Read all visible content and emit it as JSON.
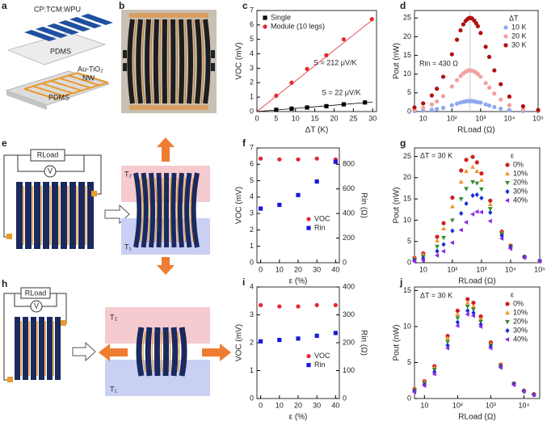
{
  "figures": [
    {
      "label": "a",
      "texts": [
        "CP:TCM:WPU",
        "PDMS",
        "Au-TiO₂",
        "NW",
        "PDMS"
      ]
    },
    {
      "label": "b"
    },
    {
      "label": "e",
      "texts": [
        "RLoad",
        "V",
        "T₂",
        "T₁"
      ]
    },
    {
      "label": "h",
      "texts": [
        "RLoad",
        "V",
        "T₂",
        "T₁"
      ]
    }
  ],
  "chart_data": [
    {
      "type": "scatter",
      "label": "c",
      "xlabel": "ΔT (K)",
      "ylabel": "VOC (mV)",
      "xlim": [
        0,
        31
      ],
      "xticks": [
        0,
        5,
        10,
        15,
        20,
        25,
        30
      ],
      "ylim": [
        0,
        7
      ],
      "yticks": [
        0,
        1,
        2,
        3,
        4,
        5,
        6,
        7
      ],
      "legend": "upper left",
      "series": [
        {
          "name": "Single",
          "color": "#000000",
          "marker": "square",
          "x": [
            5,
            9,
            13,
            18,
            22.5,
            28
          ],
          "values": [
            0.12,
            0.2,
            0.28,
            0.37,
            0.5,
            0.63
          ]
        },
        {
          "name": "Module (10 legs)",
          "color": "#e3262d",
          "marker": "circle",
          "x": [
            5,
            9,
            13,
            18,
            22.5,
            29.8
          ],
          "values": [
            1.1,
            2.0,
            2.95,
            3.9,
            5.0,
            6.4
          ]
        }
      ],
      "fits": [
        {
          "color": "#e3262d",
          "x": [
            0,
            30
          ],
          "values": [
            0,
            6.36
          ]
        },
        {
          "color": "#000000",
          "x": [
            0,
            30
          ],
          "values": [
            0,
            0.66
          ]
        }
      ],
      "annotations": [
        {
          "text": "S = 212 μV/K",
          "color": "#e3262d"
        },
        {
          "text": "S = 22 μV/K",
          "color": "#000000"
        }
      ]
    },
    {
      "type": "scatter",
      "label": "d",
      "xlabel": "RLoad (Ω)",
      "ylabel": "Pout (nW)",
      "xscale": "log",
      "xlim": [
        5,
        100000
      ],
      "xticks": [
        10,
        {
          "value": 100,
          "label": "10²"
        },
        {
          "value": 1000,
          "label": "10³"
        },
        {
          "value": 10000,
          "label": "10⁴"
        },
        {
          "value": 100000,
          "label": "10⁵"
        }
      ],
      "ylim": [
        0,
        27
      ],
      "yticks": [
        0,
        5,
        10,
        15,
        20,
        25
      ],
      "legend": "upper right",
      "legend_title": "ΔT",
      "ref_line": 430,
      "annotations": [
        {
          "text": "Rin = 430 Ω",
          "color": "#000000"
        }
      ],
      "x": [
        5,
        10,
        20,
        30,
        50,
        100,
        150,
        200,
        250,
        300,
        350,
        400,
        450,
        500,
        600,
        700,
        800,
        1000,
        1500,
        2000,
        3000,
        5000,
        10000,
        30000,
        100000
      ],
      "series": [
        {
          "name": "10 K",
          "color": "#8fa8f0",
          "marker": "circle",
          "values": [
            0.13,
            0.25,
            0.48,
            0.68,
            1.0,
            1.7,
            2.1,
            2.4,
            2.6,
            2.7,
            2.8,
            2.8,
            2.8,
            2.8,
            2.7,
            2.6,
            2.5,
            2.4,
            1.9,
            1.6,
            1.2,
            0.8,
            0.4,
            0.16,
            0.05
          ]
        },
        {
          "name": "20 K",
          "color": "#f2a0a0",
          "marker": "circle",
          "values": [
            0.5,
            1.0,
            1.9,
            2.7,
            4.1,
            6.7,
            8.4,
            9.5,
            10.2,
            10.6,
            10.9,
            11.0,
            11.0,
            10.9,
            10.7,
            10.4,
            10.0,
            9.3,
            7.6,
            6.4,
            4.8,
            3.2,
            1.7,
            0.6,
            0.2
          ]
        },
        {
          "name": "30 K",
          "color": "#b01010",
          "marker": "circle",
          "values": [
            1.1,
            2.2,
            4.3,
            6.1,
            9.3,
            15.3,
            19.2,
            21.7,
            23.3,
            24.2,
            24.7,
            25.0,
            25.0,
            24.9,
            24.3,
            23.6,
            22.8,
            21.0,
            17.3,
            14.6,
            11.0,
            7.3,
            4.0,
            1.4,
            0.4
          ]
        }
      ]
    },
    {
      "type": "scatter",
      "label": "f",
      "xlabel": "ε (%)",
      "ylabel": "VOC (mV)",
      "y2label": "Rin (Ω)",
      "xlim": [
        -2,
        42
      ],
      "xticks": [
        0,
        10,
        20,
        30,
        40
      ],
      "ylim": [
        0,
        7
      ],
      "yticks": [
        0,
        1,
        2,
        3,
        4,
        5,
        6,
        7
      ],
      "y2lim": [
        0,
        933
      ],
      "y2ticks": [
        0,
        200,
        400,
        600,
        800
      ],
      "legend": "center right",
      "x": [
        0,
        10,
        20,
        30,
        40
      ],
      "series": [
        {
          "name": "VOC",
          "color": "#e3262d",
          "marker": "circle",
          "values": [
            6.35,
            6.3,
            6.3,
            6.35,
            6.3
          ]
        },
        {
          "name": "Rin",
          "color": "#1a1ad6",
          "marker": "square",
          "axis": "y2",
          "values": [
            440,
            470,
            550,
            660,
            820
          ]
        }
      ]
    },
    {
      "type": "scatter",
      "label": "g",
      "xlabel": "RLoad (Ω)",
      "ylabel": "Pout (nW)",
      "xscale": "log",
      "xlim": [
        5,
        100000
      ],
      "xticks": [
        10,
        {
          "value": 100,
          "label": "10²"
        },
        {
          "value": 1000,
          "label": "10³"
        },
        {
          "value": 10000,
          "label": "10⁴"
        },
        {
          "value": 100000,
          "label": "10⁵"
        }
      ],
      "ylim": [
        0,
        27
      ],
      "yticks": [
        0,
        5,
        10,
        15,
        20,
        25
      ],
      "legend": "upper right",
      "legend_title": "ε",
      "annotations": [
        {
          "text": "ΔT = 30 K",
          "color": "#000000"
        }
      ],
      "x": [
        5,
        10,
        30,
        50,
        100,
        200,
        300,
        500,
        700,
        1000,
        2000,
        5000,
        10000,
        30000,
        100000
      ],
      "series": [
        {
          "name": "0%",
          "color": "#d0201f",
          "marker": "circle",
          "values": [
            1.1,
            2.2,
            6.1,
            9.3,
            15.3,
            21.7,
            24.2,
            24.9,
            23.6,
            21.0,
            14.6,
            7.3,
            4.0,
            1.4,
            0.4
          ]
        },
        {
          "name": "10%",
          "color": "#f0922a",
          "marker": "triangle-up",
          "values": [
            0.96,
            1.9,
            5.2,
            8.0,
            13.2,
            19.0,
            21.5,
            22.5,
            21.5,
            19.4,
            13.7,
            7.0,
            3.8,
            1.3,
            0.4
          ]
        },
        {
          "name": "20%",
          "color": "#2e8b2e",
          "marker": "triangle-down",
          "values": [
            0.7,
            1.4,
            3.8,
            5.9,
            10.0,
            15.0,
            17.4,
            19.0,
            18.7,
            17.3,
            12.7,
            6.7,
            3.7,
            1.3,
            0.4
          ]
        },
        {
          "name": "30%",
          "color": "#1a2fd6",
          "marker": "diamond",
          "values": [
            0.5,
            1.0,
            2.7,
            4.3,
            7.5,
            11.6,
            13.9,
            15.8,
            16.0,
            15.2,
            11.8,
            6.4,
            3.6,
            1.3,
            0.4
          ]
        },
        {
          "name": "40%",
          "color": "#8a2be2",
          "marker": "triangle-left",
          "values": [
            0.3,
            0.6,
            1.7,
            2.7,
            4.7,
            7.7,
            9.5,
            11.4,
            12.0,
            11.9,
            9.8,
            5.7,
            3.3,
            1.2,
            0.4
          ]
        }
      ]
    },
    {
      "type": "scatter",
      "label": "i",
      "xlabel": "ε (%)",
      "ylabel": "VOC (mV)",
      "y2label": "Rin (Ω)",
      "xlim": [
        -2,
        42
      ],
      "xticks": [
        0,
        10,
        20,
        30,
        40
      ],
      "ylim": [
        0,
        4
      ],
      "yticks": [
        0,
        1,
        2,
        3,
        4
      ],
      "y2lim": [
        0,
        400
      ],
      "y2ticks": [
        0,
        100,
        200,
        300,
        400
      ],
      "legend": "center right",
      "x": [
        0,
        10,
        20,
        30,
        40
      ],
      "series": [
        {
          "name": "VOC",
          "color": "#e3262d",
          "marker": "circle",
          "values": [
            3.35,
            3.3,
            3.3,
            3.35,
            3.35
          ]
        },
        {
          "name": "Rin",
          "color": "#1a1ad6",
          "marker": "square",
          "axis": "y2",
          "values": [
            205,
            210,
            215,
            225,
            235
          ]
        }
      ]
    },
    {
      "type": "scatter",
      "label": "j",
      "xlabel": "RLoad (Ω)",
      "ylabel": "Pout (nW)",
      "xscale": "log",
      "xlim": [
        5,
        30000
      ],
      "xticks": [
        10,
        {
          "value": 100,
          "label": "10²"
        },
        {
          "value": 1000,
          "label": "10³"
        },
        {
          "value": 10000,
          "label": "10⁴"
        }
      ],
      "ylim": [
        0,
        15.5
      ],
      "yticks": [
        0,
        5,
        10,
        15
      ],
      "legend": "upper right",
      "legend_title": "ε",
      "annotations": [
        {
          "text": "ΔT = 30 K",
          "color": "#000000"
        }
      ],
      "x": [
        5,
        10,
        20,
        50,
        100,
        200,
        300,
        500,
        1000,
        2000,
        5000,
        10000,
        20000
      ],
      "series": [
        {
          "name": "0%",
          "color": "#d0201f",
          "marker": "circle",
          "values": [
            1.3,
            2.4,
            4.5,
            8.7,
            12.2,
            13.8,
            13.3,
            11.4,
            7.8,
            4.7,
            2.1,
            1.1,
            0.6
          ]
        },
        {
          "name": "10%",
          "color": "#f0922a",
          "marker": "triangle-up",
          "values": [
            1.2,
            2.3,
            4.3,
            8.4,
            11.7,
            13.3,
            12.8,
            11.0,
            7.6,
            4.6,
            2.1,
            1.1,
            0.6
          ]
        },
        {
          "name": "20%",
          "color": "#2e8b2e",
          "marker": "triangle-down",
          "values": [
            1.1,
            2.1,
            4.0,
            7.9,
            11.2,
            12.8,
            12.4,
            10.7,
            7.4,
            4.5,
            2.0,
            1.0,
            0.5
          ]
        },
        {
          "name": "30%",
          "color": "#1a2fd6",
          "marker": "diamond",
          "values": [
            1.0,
            1.9,
            3.7,
            7.4,
            10.6,
            12.2,
            11.9,
            10.3,
            7.2,
            4.4,
            2.0,
            1.0,
            0.5
          ]
        },
        {
          "name": "40%",
          "color": "#8a2be2",
          "marker": "triangle-left",
          "values": [
            0.9,
            1.8,
            3.4,
            7.0,
            10.1,
            11.7,
            11.5,
            10.0,
            7.0,
            4.3,
            1.9,
            1.0,
            0.5
          ]
        }
      ]
    }
  ]
}
